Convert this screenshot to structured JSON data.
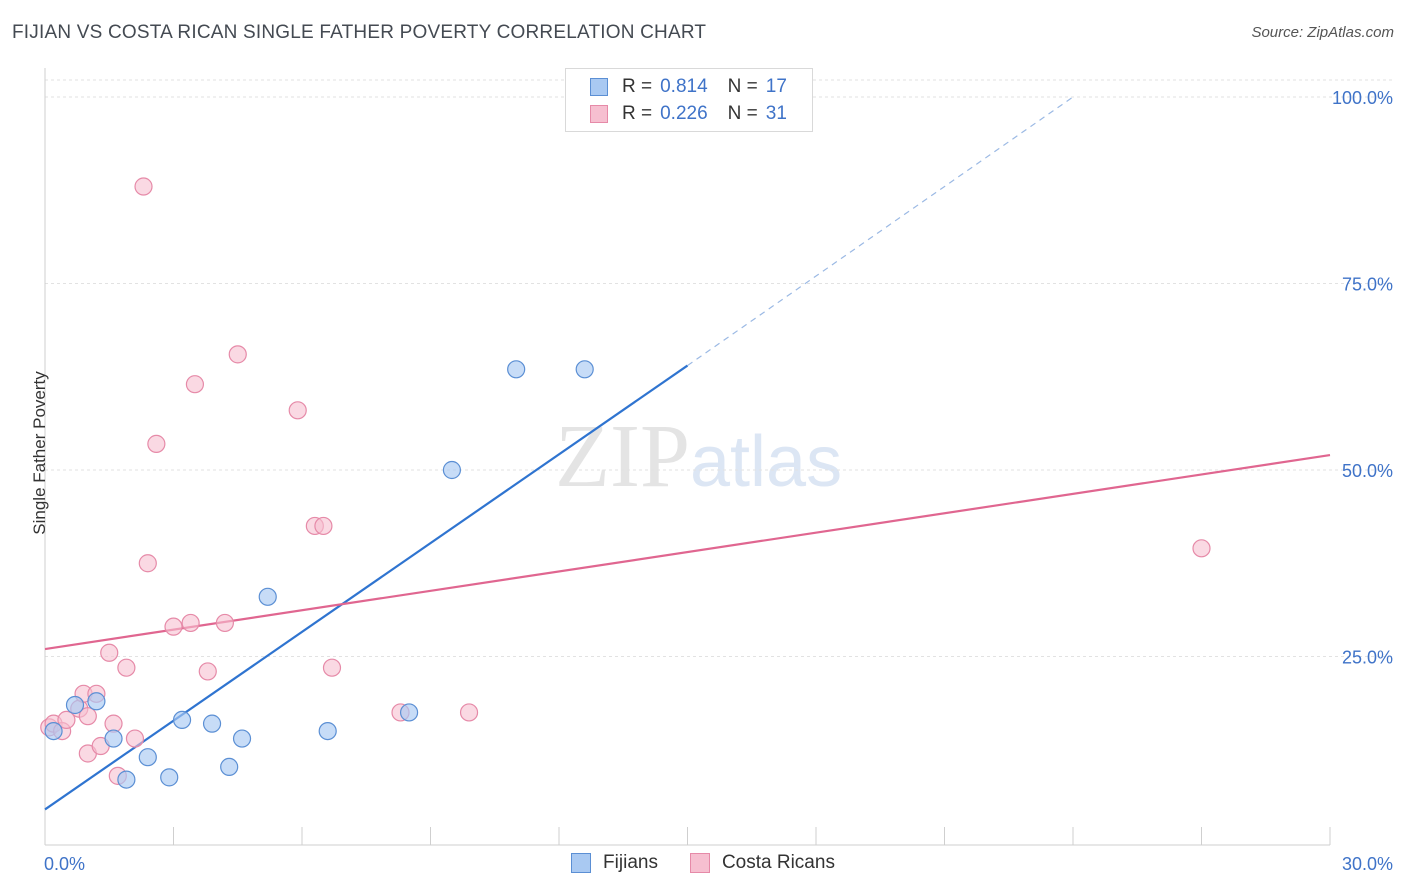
{
  "title": "FIJIAN VS COSTA RICAN SINGLE FATHER POVERTY CORRELATION CHART",
  "source": "Source: ZipAtlas.com",
  "watermark": {
    "zip": "ZIP",
    "atlas": "atlas"
  },
  "legend_top": [
    {
      "r_label": "R =",
      "r_value": "0.814",
      "n_label": "N =",
      "n_value": "17"
    },
    {
      "r_label": "R =",
      "r_value": "0.226",
      "n_label": "N =",
      "n_value": "31"
    }
  ],
  "colors": {
    "fijian_fill": "#a9c9f2",
    "fijian_stroke": "#5b8fd4",
    "fijian_line": "#2f74d0",
    "costa_fill": "#f6bfd0",
    "costa_stroke": "#e68aa8",
    "costa_line": "#e06690",
    "grid": "#e2e2e2",
    "axis_label": "#3f73c8"
  },
  "chart_data": {
    "type": "scatter",
    "title": "FIJIAN VS COSTA RICAN SINGLE FATHER POVERTY CORRELATION CHART",
    "xlabel": "",
    "ylabel": "Single Father Poverty",
    "xlim": [
      0,
      30
    ],
    "ylim": [
      0,
      100
    ],
    "x_tick_labels": [
      "0.0%",
      "30.0%"
    ],
    "y_tick_labels": [
      "25.0%",
      "50.0%",
      "75.0%",
      "100.0%"
    ],
    "y_ticks": [
      25,
      50,
      75,
      100
    ],
    "series": [
      {
        "name": "Fijians",
        "r": 0.814,
        "n": 17,
        "points": [
          [
            0.2,
            15.0
          ],
          [
            0.7,
            18.5
          ],
          [
            1.2,
            19.0
          ],
          [
            1.6,
            14.0
          ],
          [
            1.9,
            8.5
          ],
          [
            2.4,
            11.5
          ],
          [
            2.9,
            8.8
          ],
          [
            3.2,
            16.5
          ],
          [
            3.9,
            16.0
          ],
          [
            4.3,
            10.2
          ],
          [
            4.6,
            14.0
          ],
          [
            5.2,
            33.0
          ],
          [
            6.6,
            15.0
          ],
          [
            8.5,
            17.5
          ],
          [
            9.5,
            50.0
          ],
          [
            11.0,
            63.5
          ],
          [
            12.6,
            63.5
          ]
        ],
        "trend": {
          "x0": 0,
          "y0": 4.5,
          "x1": 15.0,
          "y1": 64.0,
          "dash_to_x": 24.0,
          "dash_to_y": 100.0
        }
      },
      {
        "name": "Costa Ricans",
        "r": 0.226,
        "n": 31,
        "points": [
          [
            0.1,
            15.5
          ],
          [
            0.2,
            16.0
          ],
          [
            0.4,
            15.0
          ],
          [
            0.5,
            16.5
          ],
          [
            0.8,
            18.0
          ],
          [
            0.9,
            20.0
          ],
          [
            1.0,
            17.0
          ],
          [
            1.0,
            12.0
          ],
          [
            1.2,
            20.0
          ],
          [
            1.3,
            13.0
          ],
          [
            1.5,
            25.5
          ],
          [
            1.6,
            16.0
          ],
          [
            1.7,
            9.0
          ],
          [
            1.9,
            23.5
          ],
          [
            2.1,
            14.0
          ],
          [
            2.3,
            88.0
          ],
          [
            2.6,
            53.5
          ],
          [
            2.4,
            37.5
          ],
          [
            3.0,
            29.0
          ],
          [
            3.4,
            29.5
          ],
          [
            3.5,
            61.5
          ],
          [
            3.8,
            23.0
          ],
          [
            4.2,
            29.5
          ],
          [
            4.5,
            65.5
          ],
          [
            5.9,
            58.0
          ],
          [
            6.3,
            42.5
          ],
          [
            6.5,
            42.5
          ],
          [
            6.7,
            23.5
          ],
          [
            8.3,
            17.5
          ],
          [
            9.9,
            17.5
          ],
          [
            27.0,
            39.5
          ]
        ],
        "trend": {
          "x0": 0,
          "y0": 26.0,
          "x1": 30,
          "y1": 52.0
        }
      }
    ]
  }
}
